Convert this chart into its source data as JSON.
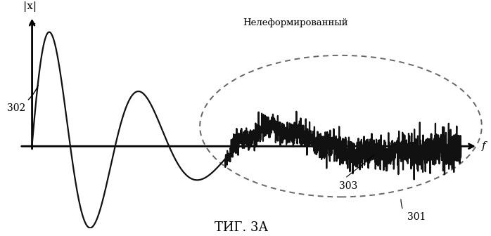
{
  "title": "ΤИГ. 3А",
  "label_x": "|x|",
  "label_f": "f",
  "label_302": "302",
  "label_303": "303",
  "label_301": "301",
  "label_undeformed": "Нелеформированный",
  "background_color": "#ffffff",
  "line_color": "#111111",
  "ellipse_color": "#666666",
  "title_fontsize": 13,
  "annotation_fontsize": 10
}
